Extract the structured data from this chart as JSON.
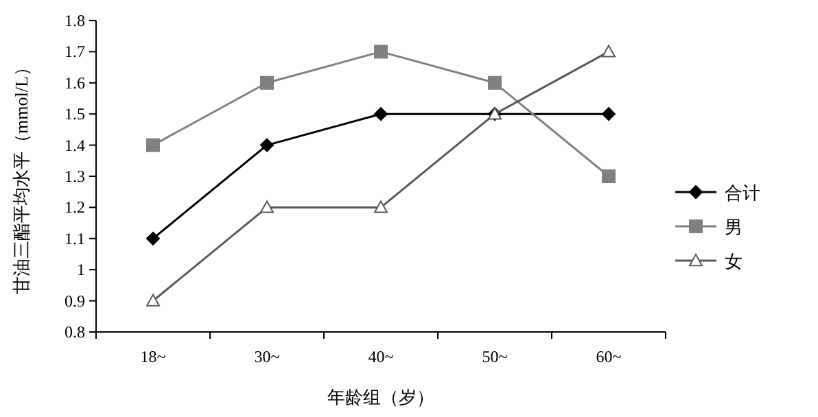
{
  "chart_data": {
    "type": "line",
    "xlabel": "年龄组（岁）",
    "ylabel": "甘油三酯平均水平（mmol/L）",
    "categories": [
      "18~",
      "30~",
      "40~",
      "50~",
      "60~"
    ],
    "series": [
      {
        "name": "合计",
        "color": "#000000",
        "marker": "diamond",
        "values": [
          1.1,
          1.4,
          1.5,
          1.5,
          1.5
        ]
      },
      {
        "name": "男",
        "color": "#808080",
        "marker": "square",
        "values": [
          1.4,
          1.6,
          1.7,
          1.6,
          1.3
        ]
      },
      {
        "name": "女",
        "color": "#595959",
        "marker": "triangle",
        "values": [
          0.9,
          1.2,
          1.2,
          1.5,
          1.7
        ]
      }
    ],
    "ylim": [
      0.8,
      1.8
    ],
    "yticks": [
      0.8,
      0.9,
      1,
      1.1,
      1.2,
      1.3,
      1.4,
      1.5,
      1.6,
      1.7,
      1.8
    ],
    "grid": false,
    "legend": "right",
    "line_style": "solid"
  }
}
